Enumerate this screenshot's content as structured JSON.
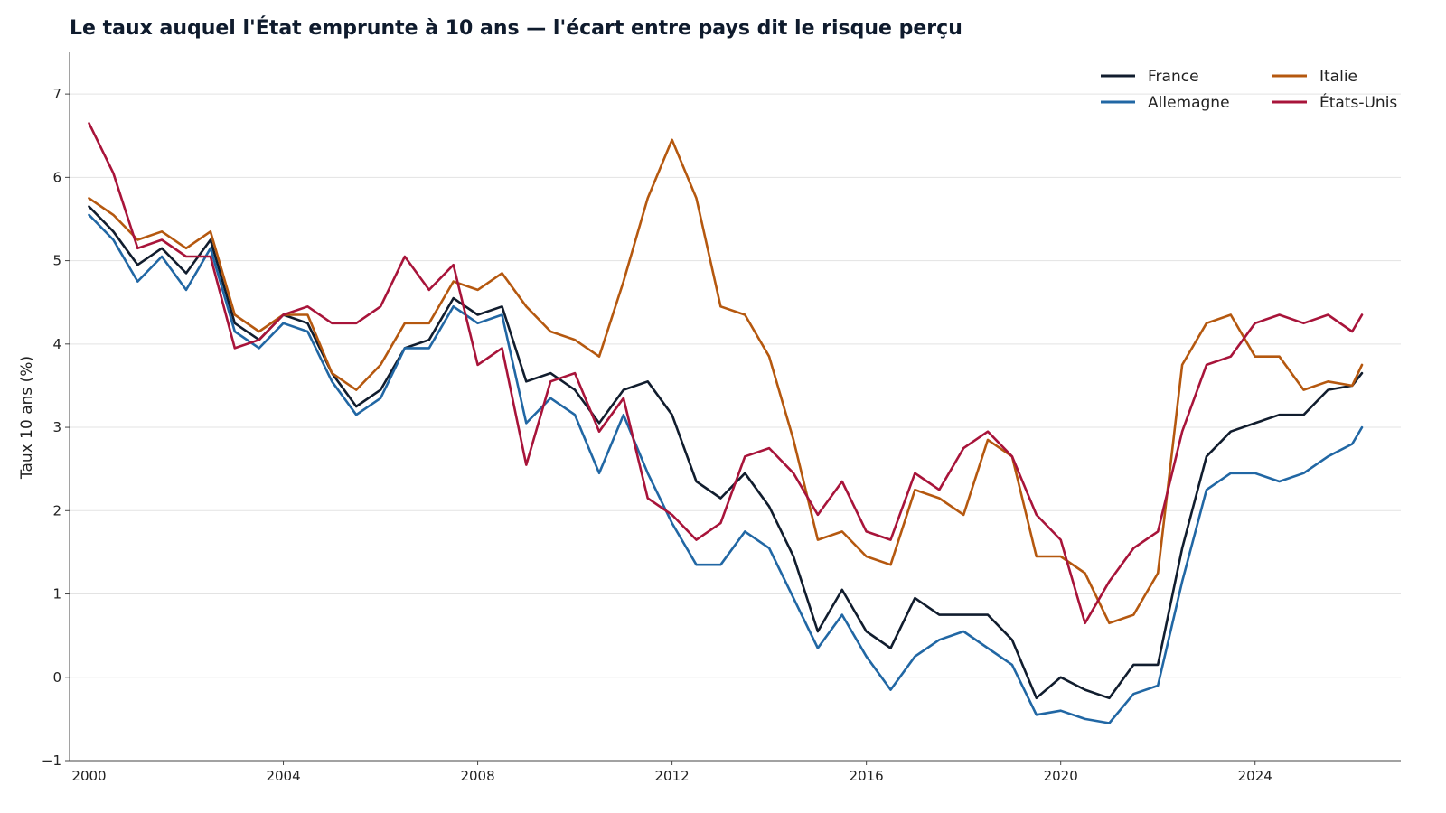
{
  "chart_data": {
    "type": "line",
    "title": "Le taux auquel l'État emprunte à 10 ans — l'écart entre pays dit le risque perçu",
    "xlabel": "",
    "ylabel": "Taux 10 ans (%)",
    "xlim": [
      1999.6,
      2027.0
    ],
    "ylim": [
      -1.0,
      7.5
    ],
    "x_ticks": [
      "2000",
      "2004",
      "2008",
      "2012",
      "2016",
      "2020",
      "2024"
    ],
    "y_ticks": [
      "−1",
      "0",
      "1",
      "2",
      "3",
      "4",
      "5",
      "6",
      "7"
    ],
    "grid": "horizontal",
    "legend_position": "top-right",
    "x_unit": "year",
    "x": [
      2000.0,
      2000.5,
      2001.0,
      2001.5,
      2002.0,
      2002.5,
      2003.0,
      2003.5,
      2004.0,
      2004.5,
      2005.0,
      2005.5,
      2006.0,
      2006.5,
      2007.0,
      2007.5,
      2008.0,
      2008.5,
      2009.0,
      2009.5,
      2010.0,
      2010.5,
      2011.0,
      2011.5,
      2012.0,
      2012.5,
      2013.0,
      2013.5,
      2014.0,
      2014.5,
      2015.0,
      2015.5,
      2016.0,
      2016.5,
      2017.0,
      2017.5,
      2018.0,
      2018.5,
      2019.0,
      2019.5,
      2020.0,
      2020.5,
      2021.0,
      2021.5,
      2022.0,
      2022.5,
      2023.0,
      2023.5,
      2024.0,
      2024.5,
      2025.0,
      2025.5,
      2026.0,
      2026.2
    ],
    "series": [
      {
        "name": "France",
        "color": "#111d2e",
        "values": [
          5.65,
          5.35,
          4.95,
          5.15,
          4.85,
          5.25,
          4.25,
          4.05,
          4.35,
          4.25,
          3.65,
          3.25,
          3.45,
          3.95,
          4.05,
          4.55,
          4.35,
          4.45,
          3.55,
          3.65,
          3.45,
          3.05,
          3.45,
          3.55,
          3.15,
          2.35,
          2.15,
          2.45,
          2.05,
          1.45,
          0.55,
          1.05,
          0.55,
          0.35,
          0.95,
          0.75,
          0.75,
          0.75,
          0.45,
          -0.25,
          0.0,
          -0.15,
          -0.25,
          0.15,
          0.15,
          1.55,
          2.65,
          2.95,
          3.05,
          3.15,
          3.15,
          3.45,
          3.5,
          3.65
        ]
      },
      {
        "name": "Allemagne",
        "color": "#2167a4",
        "values": [
          5.55,
          5.25,
          4.75,
          5.05,
          4.65,
          5.15,
          4.15,
          3.95,
          4.25,
          4.15,
          3.55,
          3.15,
          3.35,
          3.95,
          3.95,
          4.45,
          4.25,
          4.35,
          3.05,
          3.35,
          3.15,
          2.45,
          3.15,
          2.45,
          1.85,
          1.35,
          1.35,
          1.75,
          1.55,
          0.95,
          0.35,
          0.75,
          0.25,
          -0.15,
          0.25,
          0.45,
          0.55,
          0.35,
          0.15,
          -0.45,
          -0.4,
          -0.5,
          -0.55,
          -0.2,
          -0.1,
          1.15,
          2.25,
          2.45,
          2.45,
          2.35,
          2.45,
          2.65,
          2.8,
          3.0
        ]
      },
      {
        "name": "Italie",
        "color": "#b5580f",
        "values": [
          5.75,
          5.55,
          5.25,
          5.35,
          5.15,
          5.35,
          4.35,
          4.15,
          4.35,
          4.35,
          3.65,
          3.45,
          3.75,
          4.25,
          4.25,
          4.75,
          4.65,
          4.85,
          4.45,
          4.15,
          4.05,
          3.85,
          4.75,
          5.75,
          6.45,
          5.75,
          4.45,
          4.35,
          3.85,
          2.85,
          1.65,
          1.75,
          1.45,
          1.35,
          2.25,
          2.15,
          1.95,
          2.85,
          2.65,
          1.45,
          1.45,
          1.25,
          0.65,
          0.75,
          1.25,
          3.75,
          4.25,
          4.35,
          3.85,
          3.85,
          3.45,
          3.55,
          3.5,
          3.75
        ]
      },
      {
        "name": "États-Unis",
        "color": "#a8143a",
        "values": [
          6.65,
          6.05,
          5.15,
          5.25,
          5.05,
          5.05,
          3.95,
          4.05,
          4.35,
          4.45,
          4.25,
          4.25,
          4.45,
          5.05,
          4.65,
          4.95,
          3.75,
          3.95,
          2.55,
          3.55,
          3.65,
          2.95,
          3.35,
          2.15,
          1.95,
          1.65,
          1.85,
          2.65,
          2.75,
          2.45,
          1.95,
          2.35,
          1.75,
          1.65,
          2.45,
          2.25,
          2.75,
          2.95,
          2.65,
          1.95,
          1.65,
          0.65,
          1.15,
          1.55,
          1.75,
          2.95,
          3.75,
          3.85,
          4.25,
          4.35,
          4.25,
          4.35,
          4.15,
          4.35
        ]
      }
    ]
  }
}
